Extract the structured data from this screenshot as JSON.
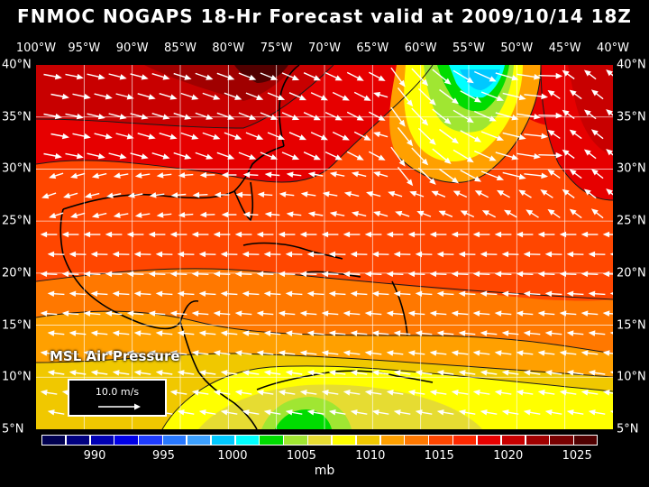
{
  "title": "FNMOC NOGAPS 18-Hr Forecast valid at 2009/10/14 18Z",
  "longitude_labels": [
    "100°W",
    "95°W",
    "90°W",
    "85°W",
    "80°W",
    "75°W",
    "70°W",
    "65°W",
    "60°W",
    "55°W",
    "50°W",
    "45°W",
    "40°W"
  ],
  "latitude_labels": [
    "40°N",
    "35°N",
    "30°N",
    "25°N",
    "20°N",
    "15°N",
    "10°N",
    "5°N"
  ],
  "field_label": "MSL Air Pressure",
  "reference_vector": "10.0 m/s",
  "colorbar": {
    "labels": [
      "990",
      "995",
      "1000",
      "1005",
      "1010",
      "1015",
      "1020",
      "1025"
    ],
    "units": "mb",
    "colors": [
      "#000050",
      "#000080",
      "#0000b4",
      "#0000e6",
      "#1e3cff",
      "#2878ff",
      "#3ca0ff",
      "#00c8ff",
      "#00ffff",
      "#00dc00",
      "#a0e632",
      "#e6dc32",
      "#ffff00",
      "#f0c800",
      "#ffa000",
      "#ff7800",
      "#ff4600",
      "#ff2800",
      "#e60000",
      "#c80000",
      "#a00000",
      "#780000",
      "#500000"
    ]
  },
  "region": {
    "lon_min": -100,
    "lon_max": -40,
    "lat_min": 5,
    "lat_max": 40
  }
}
